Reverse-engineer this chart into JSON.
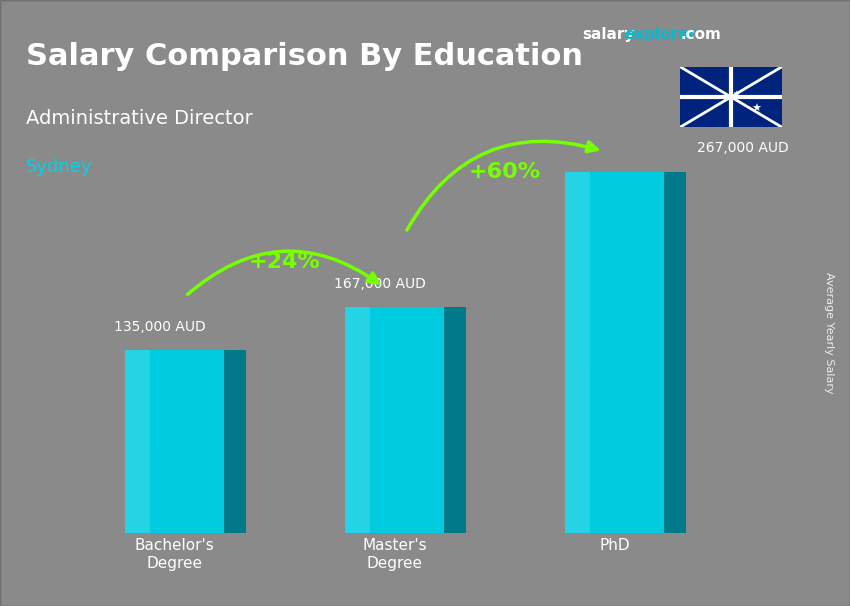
{
  "title_main": "Salary Comparison By Education",
  "title_sub": "Administrative Director",
  "title_city": "Sydney",
  "ylabel": "Average Yearly Salary",
  "categories": [
    "Bachelor's\nDegree",
    "Master's\nDegree",
    "PhD"
  ],
  "values": [
    135000,
    167000,
    267000
  ],
  "value_labels": [
    "135,000 AUD",
    "167,000 AUD",
    "267,000 AUD"
  ],
  "pct_labels": [
    "+24%",
    "+60%"
  ],
  "bar_color_top": "#00e5ff",
  "bar_color_mid": "#00bcd4",
  "bar_color_bottom": "#0097a7",
  "bar_color_side": "#006064",
  "bg_color": "#1a1a2e",
  "text_color_white": "#ffffff",
  "text_color_cyan": "#00e5ff",
  "text_color_green": "#76ff03",
  "brand_salary": "salary",
  "brand_explorer": "explorer",
  "brand_com": ".com",
  "site_color_salary": "#ffffff",
  "site_color_explorer": "#00bcd4",
  "xlim": [
    -0.6,
    2.8
  ],
  "ylim": [
    0,
    340000
  ],
  "bar_width": 0.45,
  "bar_positions": [
    0,
    1,
    2
  ]
}
